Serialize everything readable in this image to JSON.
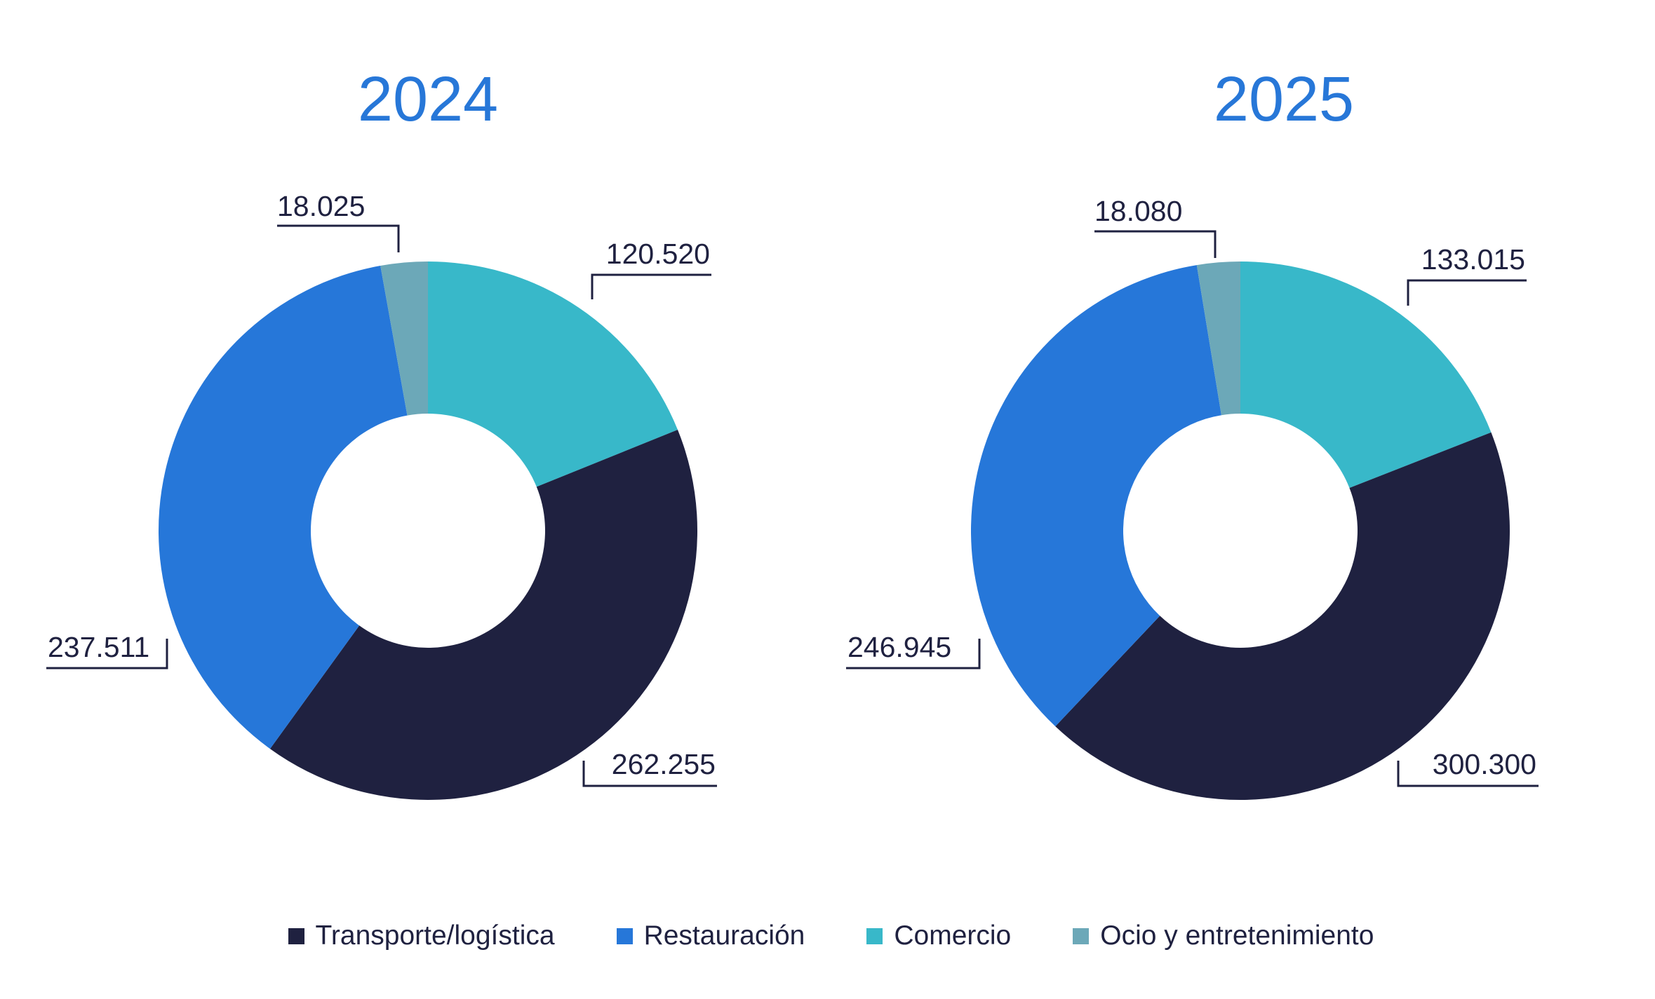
{
  "chart_data": [
    {
      "type": "donut",
      "title": "2024",
      "categories": [
        "Transporte/logística",
        "Restauración",
        "Comercio",
        "Ocio y entretenimiento"
      ],
      "values": [
        262255,
        237511,
        120520,
        18025
      ],
      "value_labels": [
        "262.255",
        "237.511",
        "120.520",
        "18.025"
      ]
    },
    {
      "type": "donut",
      "title": "2025",
      "categories": [
        "Transporte/logística",
        "Restauración",
        "Comercio",
        "Ocio y entretenimiento"
      ],
      "values": [
        300300,
        246945,
        133015,
        18080
      ],
      "value_labels": [
        "300.300",
        "246.945",
        "133.015",
        "18.080"
      ]
    }
  ],
  "legend": {
    "items": [
      {
        "label": "Transporte/logística",
        "color": "#1f2140"
      },
      {
        "label": "Restauración",
        "color": "#2677d9"
      },
      {
        "label": "Comercio",
        "color": "#38b8c9"
      },
      {
        "label": "Ocio y entretenimiento",
        "color": "#6ca8b8"
      }
    ]
  }
}
